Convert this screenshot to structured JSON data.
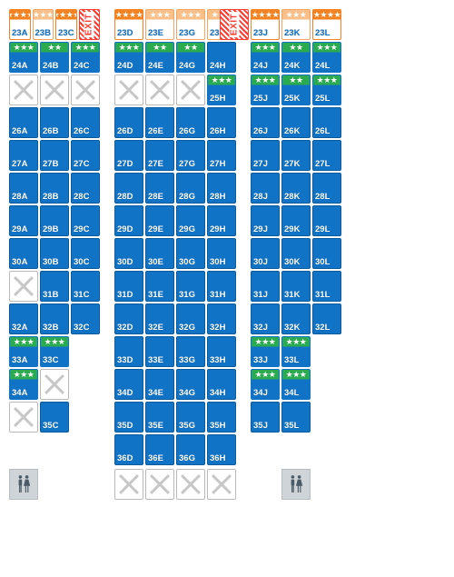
{
  "colors": {
    "blue": "#1073c6",
    "green": "#2bab4f",
    "orange": "#f58220",
    "orangelight": "#fbbf8a",
    "blocked_border": "#b9b9b9",
    "blocked_x": "#c7c7c7",
    "exit_red": "#ff3a2f",
    "facility_bg": "#cfd4d8"
  },
  "layout": {
    "seat_w": 32,
    "seat_h": 34,
    "gap": 2,
    "aisle_gap": 16,
    "star_band_height": 11
  },
  "exit_label": "EXIT",
  "columns": {
    "left": [
      "A",
      "B",
      "C"
    ],
    "mid": [
      "D",
      "E",
      "G",
      "H"
    ],
    "right_normal": [
      "J",
      "K",
      "L"
    ],
    "row25_right": [
      "J",
      "K",
      "L"
    ]
  },
  "seat_types_legend": {
    "orange": "premium 4-star, white body, orange stripe",
    "orangelight": "premium 3-star light orange",
    "green": "extra-legroom 3-star (2-star variant) green stripe on blue",
    "blue": "standard seat",
    "blocked": "unavailable (X)",
    "empty": "no seat",
    "exit": "exit placeholder"
  },
  "seats": {
    "left": [
      [
        {
          "id": "23A",
          "type": "orange",
          "stars": 4
        },
        {
          "id": "23B",
          "type": "orangelight",
          "stars": 3
        },
        {
          "id": "23C",
          "type": "orange",
          "stars": 4
        }
      ],
      [
        {
          "id": "24A",
          "type": "green",
          "stars": 3
        },
        {
          "id": "24B",
          "type": "green",
          "stars": 2
        },
        {
          "id": "24C",
          "type": "green",
          "stars": 3
        }
      ],
      [
        {
          "type": "blocked"
        },
        {
          "type": "blocked"
        },
        {
          "type": "blocked"
        }
      ],
      [
        {
          "id": "26A",
          "type": "blue"
        },
        {
          "id": "26B",
          "type": "blue"
        },
        {
          "id": "26C",
          "type": "blue"
        }
      ],
      [
        {
          "id": "27A",
          "type": "blue"
        },
        {
          "id": "27B",
          "type": "blue"
        },
        {
          "id": "27C",
          "type": "blue"
        }
      ],
      [
        {
          "id": "28A",
          "type": "blue"
        },
        {
          "id": "28B",
          "type": "blue"
        },
        {
          "id": "28C",
          "type": "blue"
        }
      ],
      [
        {
          "id": "29A",
          "type": "blue"
        },
        {
          "id": "29B",
          "type": "blue"
        },
        {
          "id": "29C",
          "type": "blue"
        }
      ],
      [
        {
          "id": "30A",
          "type": "blue"
        },
        {
          "id": "30B",
          "type": "blue"
        },
        {
          "id": "30C",
          "type": "blue"
        }
      ],
      [
        {
          "type": "blocked"
        },
        {
          "id": "31B",
          "type": "blue"
        },
        {
          "id": "31C",
          "type": "blue"
        }
      ],
      [
        {
          "id": "32A",
          "type": "blue"
        },
        {
          "id": "32B",
          "type": "blue"
        },
        {
          "id": "32C",
          "type": "blue"
        }
      ],
      [
        {
          "id": "33A",
          "type": "green",
          "stars": 3
        },
        {
          "id": "33C",
          "type": "green",
          "stars": 3
        },
        {
          "type": "empty"
        }
      ],
      [
        {
          "id": "34A",
          "type": "green",
          "stars": 3
        },
        {
          "type": "blocked"
        },
        {
          "type": "empty"
        }
      ],
      [
        {
          "type": "blocked"
        },
        {
          "id": "35C",
          "type": "blue"
        },
        {
          "type": "empty"
        }
      ],
      [
        {
          "type": "empty"
        },
        {
          "type": "empty"
        },
        {
          "type": "empty"
        }
      ]
    ],
    "mid": [
      [
        {
          "id": "23D",
          "type": "orange",
          "stars": 4
        },
        {
          "id": "23E",
          "type": "orangelight",
          "stars": 3
        },
        {
          "id": "23G",
          "type": "orangelight",
          "stars": 3
        },
        {
          "id": "23H",
          "type": "orangelight",
          "stars": 3
        }
      ],
      [
        {
          "id": "24D",
          "type": "green",
          "stars": 3
        },
        {
          "id": "24E",
          "type": "green",
          "stars": 2
        },
        {
          "id": "24G",
          "type": "green",
          "stars": 2
        },
        {
          "id": "24H",
          "type": "blue"
        }
      ],
      [
        {
          "type": "blocked"
        },
        {
          "type": "blocked"
        },
        {
          "type": "blocked"
        },
        {
          "id": "25H",
          "type": "green",
          "stars": 3
        }
      ],
      [
        {
          "id": "26D",
          "type": "blue"
        },
        {
          "id": "26E",
          "type": "blue"
        },
        {
          "id": "26G",
          "type": "blue"
        },
        {
          "id": "26H",
          "type": "blue"
        }
      ],
      [
        {
          "id": "27D",
          "type": "blue"
        },
        {
          "id": "27E",
          "type": "blue"
        },
        {
          "id": "27G",
          "type": "blue"
        },
        {
          "id": "27H",
          "type": "blue"
        }
      ],
      [
        {
          "id": "28D",
          "type": "blue"
        },
        {
          "id": "28E",
          "type": "blue"
        },
        {
          "id": "28G",
          "type": "blue"
        },
        {
          "id": "28H",
          "type": "blue"
        }
      ],
      [
        {
          "id": "29D",
          "type": "blue"
        },
        {
          "id": "29E",
          "type": "blue"
        },
        {
          "id": "29G",
          "type": "blue"
        },
        {
          "id": "29H",
          "type": "blue"
        }
      ],
      [
        {
          "id": "30D",
          "type": "blue"
        },
        {
          "id": "30E",
          "type": "blue"
        },
        {
          "id": "30G",
          "type": "blue"
        },
        {
          "id": "30H",
          "type": "blue"
        }
      ],
      [
        {
          "id": "31D",
          "type": "blue"
        },
        {
          "id": "31E",
          "type": "blue"
        },
        {
          "id": "31G",
          "type": "blue"
        },
        {
          "id": "31H",
          "type": "blue"
        }
      ],
      [
        {
          "id": "32D",
          "type": "blue"
        },
        {
          "id": "32E",
          "type": "blue"
        },
        {
          "id": "32G",
          "type": "blue"
        },
        {
          "id": "32H",
          "type": "blue"
        }
      ],
      [
        {
          "id": "33D",
          "type": "blue"
        },
        {
          "id": "33E",
          "type": "blue"
        },
        {
          "id": "33G",
          "type": "blue"
        },
        {
          "id": "33H",
          "type": "blue"
        }
      ],
      [
        {
          "id": "34D",
          "type": "blue"
        },
        {
          "id": "34E",
          "type": "blue"
        },
        {
          "id": "34G",
          "type": "blue"
        },
        {
          "id": "34H",
          "type": "blue"
        }
      ],
      [
        {
          "id": "35D",
          "type": "blue"
        },
        {
          "id": "35E",
          "type": "blue"
        },
        {
          "id": "35G",
          "type": "blue"
        },
        {
          "id": "35H",
          "type": "blue"
        }
      ],
      [
        {
          "id": "36D",
          "type": "blue"
        },
        {
          "id": "36E",
          "type": "blue"
        },
        {
          "id": "36G",
          "type": "blue"
        },
        {
          "id": "36H",
          "type": "blue"
        }
      ]
    ],
    "right": [
      [
        {
          "id": "23J",
          "type": "orange",
          "stars": 4
        },
        {
          "id": "23K",
          "type": "orangelight",
          "stars": 3
        },
        {
          "id": "23L",
          "type": "orange",
          "stars": 4
        }
      ],
      [
        {
          "id": "24J",
          "type": "green",
          "stars": 3
        },
        {
          "id": "24K",
          "type": "green",
          "stars": 2
        },
        {
          "id": "24L",
          "type": "green",
          "stars": 3
        }
      ],
      [
        {
          "id": "25J",
          "type": "green",
          "stars": 3
        },
        {
          "id": "25K",
          "type": "green",
          "stars": 2
        },
        {
          "id": "25L",
          "type": "green",
          "stars": 3
        }
      ],
      [
        {
          "id": "26J",
          "type": "blue"
        },
        {
          "id": "26K",
          "type": "blue"
        },
        {
          "id": "26L",
          "type": "blue"
        }
      ],
      [
        {
          "id": "27J",
          "type": "blue"
        },
        {
          "id": "27K",
          "type": "blue"
        },
        {
          "id": "27L",
          "type": "blue"
        }
      ],
      [
        {
          "id": "28J",
          "type": "blue"
        },
        {
          "id": "28K",
          "type": "blue"
        },
        {
          "id": "28L",
          "type": "blue"
        }
      ],
      [
        {
          "id": "29J",
          "type": "blue"
        },
        {
          "id": "29K",
          "type": "blue"
        },
        {
          "id": "29L",
          "type": "blue"
        }
      ],
      [
        {
          "id": "30J",
          "type": "blue"
        },
        {
          "id": "30K",
          "type": "blue"
        },
        {
          "id": "30L",
          "type": "blue"
        }
      ],
      [
        {
          "id": "31J",
          "type": "blue"
        },
        {
          "id": "31K",
          "type": "blue"
        },
        {
          "id": "31L",
          "type": "blue"
        }
      ],
      [
        {
          "id": "32J",
          "type": "blue"
        },
        {
          "id": "32K",
          "type": "blue"
        },
        {
          "id": "32L",
          "type": "blue"
        }
      ],
      [
        {
          "id": "33J",
          "type": "green",
          "stars": 3
        },
        {
          "id": "33L",
          "type": "green",
          "stars": 3
        },
        {
          "type": "empty"
        }
      ],
      [
        {
          "id": "34J",
          "type": "green",
          "stars": 3
        },
        {
          "id": "34L",
          "type": "green",
          "stars": 3
        },
        {
          "type": "empty"
        }
      ],
      [
        {
          "id": "35J",
          "type": "blue"
        },
        {
          "id": "35L",
          "type": "blue"
        },
        {
          "type": "empty"
        }
      ],
      [
        {
          "type": "empty"
        },
        {
          "type": "empty"
        },
        {
          "type": "empty"
        }
      ]
    ]
  },
  "left_exit_after_col": 2,
  "right_exit_before_col": 0,
  "facilities": {
    "left": [
      "lavatory",
      "gap",
      "gap"
    ],
    "mid": [
      "blocked",
      "blocked",
      "blocked",
      "blocked"
    ],
    "right": [
      "gap",
      "lavatory",
      "gap"
    ]
  }
}
